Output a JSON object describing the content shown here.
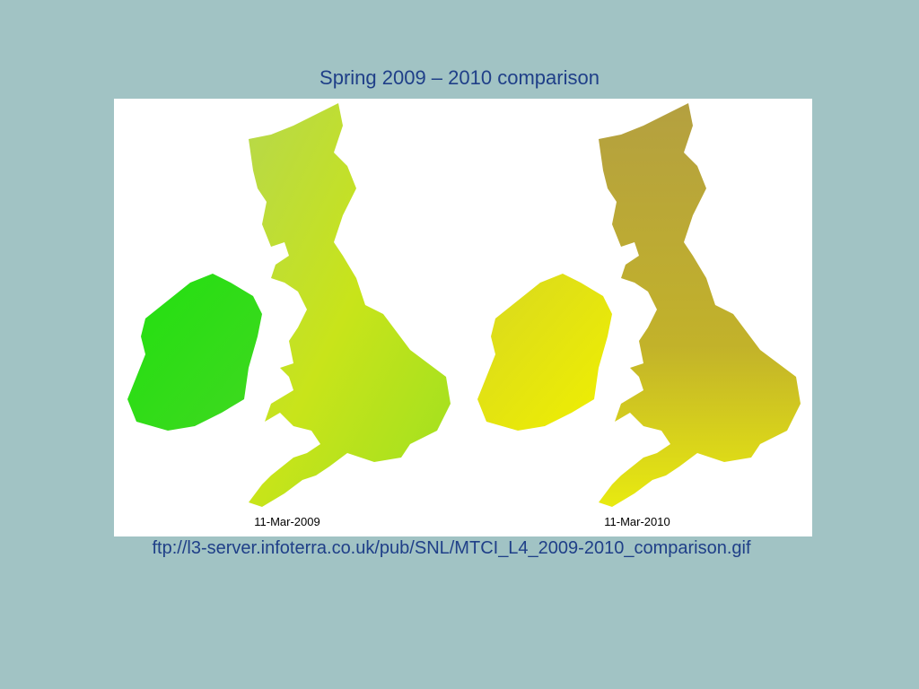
{
  "slide": {
    "title": "Spring 2009 – 2010 comparison",
    "image": {
      "labels": [
        "11-Mar-2009",
        "11-Mar-2010"
      ]
    },
    "source": "ftp://l3-server.infoterra.co.uk/pub/SNL/MTCI_L4_2009-2010_comparison.gif"
  }
}
